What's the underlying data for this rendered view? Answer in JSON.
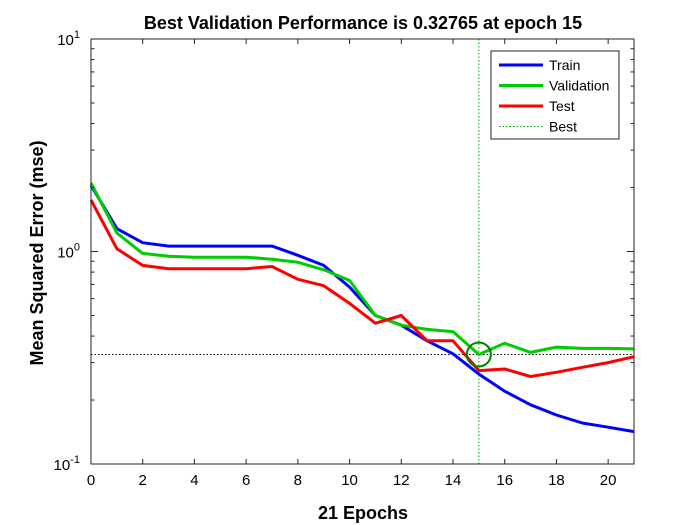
{
  "chart_data": {
    "type": "line",
    "title": "Best Validation Performance is 0.32765 at epoch 15",
    "xlabel": "21 Epochs",
    "ylabel": "Mean Squared Error  (mse)",
    "xlim": [
      0,
      21
    ],
    "ylim": [
      0.1,
      10
    ],
    "yscale": "log",
    "xticks": [
      0,
      2,
      4,
      6,
      8,
      10,
      12,
      14,
      16,
      18,
      20
    ],
    "yticks": [
      {
        "value": 10,
        "base": "10",
        "exp": "1"
      },
      {
        "value": 1,
        "base": "10",
        "exp": "0"
      },
      {
        "value": 0.1,
        "base": "10",
        "exp": "-1"
      }
    ],
    "x": [
      0,
      1,
      2,
      3,
      4,
      5,
      6,
      7,
      8,
      9,
      10,
      11,
      12,
      13,
      14,
      15,
      16,
      17,
      18,
      19,
      20,
      21
    ],
    "series": [
      {
        "name": "Train",
        "color": "#0000ff",
        "values": [
          2.05,
          1.28,
          1.1,
          1.06,
          1.06,
          1.06,
          1.06,
          1.06,
          0.96,
          0.86,
          0.68,
          0.5,
          0.45,
          0.38,
          0.33,
          0.265,
          0.22,
          0.19,
          0.17,
          0.156,
          0.149,
          0.142
        ]
      },
      {
        "name": "Validation",
        "color": "#00cc00",
        "values": [
          2.1,
          1.22,
          0.98,
          0.95,
          0.94,
          0.94,
          0.94,
          0.92,
          0.89,
          0.82,
          0.73,
          0.5,
          0.45,
          0.43,
          0.42,
          0.32765,
          0.37,
          0.335,
          0.355,
          0.35,
          0.35,
          0.348
        ]
      },
      {
        "name": "Test",
        "color": "#ff0000",
        "values": [
          1.75,
          1.03,
          0.86,
          0.83,
          0.83,
          0.83,
          0.83,
          0.85,
          0.74,
          0.69,
          0.57,
          0.46,
          0.5,
          0.38,
          0.38,
          0.275,
          0.28,
          0.258,
          0.27,
          0.285,
          0.3,
          0.32
        ]
      }
    ],
    "best": {
      "name": "Best",
      "epoch": 15,
      "value": 0.32765,
      "color": "#00aa00"
    },
    "legend": {
      "placement": "top-right"
    },
    "grid": false
  }
}
